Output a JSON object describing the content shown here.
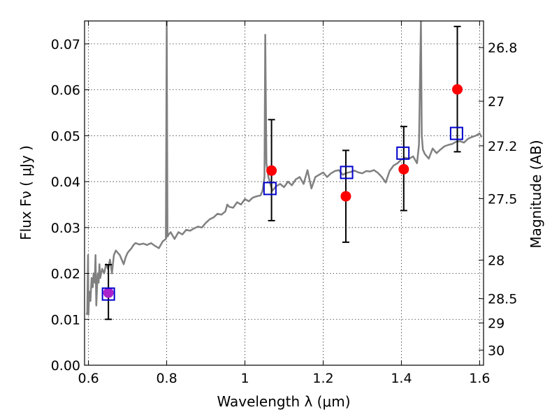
{
  "chart_data": {
    "type": "scatter",
    "xlabel": "Wavelength  λ (μm)",
    "ylabel": "Flux  Fν  ( μJy )",
    "ylabel_right": "Magnitude (AB)",
    "xlim": [
      0.59,
      1.61
    ],
    "ylim": [
      0.0,
      0.075
    ],
    "grid": true,
    "x_ticks": [
      {
        "value": 0.6,
        "label": "0.6"
      },
      {
        "value": 0.8,
        "label": "0.8"
      },
      {
        "value": 1.0,
        "label": "1"
      },
      {
        "value": 1.2,
        "label": "1.2"
      },
      {
        "value": 1.4,
        "label": "1.4"
      },
      {
        "value": 1.6,
        "label": "1.6"
      }
    ],
    "y_ticks": [
      {
        "value": 0.0,
        "label": "0.00"
      },
      {
        "value": 0.01,
        "label": "0.01"
      },
      {
        "value": 0.02,
        "label": "0.02"
      },
      {
        "value": 0.03,
        "label": "0.03"
      },
      {
        "value": 0.04,
        "label": "0.04"
      },
      {
        "value": 0.05,
        "label": "0.05"
      },
      {
        "value": 0.06,
        "label": "0.06"
      },
      {
        "value": 0.07,
        "label": "0.07"
      }
    ],
    "y2_ticks": [
      {
        "flux": 0.0692,
        "label": "26.8"
      },
      {
        "flux": 0.0575,
        "label": "27"
      },
      {
        "flux": 0.0478,
        "label": "27.2"
      },
      {
        "flux": 0.0363,
        "label": "27.5"
      },
      {
        "flux": 0.0229,
        "label": "28"
      },
      {
        "flux": 0.0145,
        "label": "28.5"
      },
      {
        "flux": 0.0092,
        "label": "29"
      },
      {
        "flux": 0.0033,
        "label": "30"
      }
    ],
    "series": [
      {
        "kind": "model-spectrum",
        "color": "#808080",
        "x": [
          0.595,
          0.597,
          0.599,
          0.6,
          0.601,
          0.603,
          0.605,
          0.608,
          0.611,
          0.613,
          0.616,
          0.618,
          0.62,
          0.622,
          0.624,
          0.626,
          0.628,
          0.63,
          0.635,
          0.64,
          0.645,
          0.65,
          0.655,
          0.66,
          0.665,
          0.67,
          0.675,
          0.68,
          0.685,
          0.69,
          0.695,
          0.7,
          0.705,
          0.71,
          0.715,
          0.72,
          0.73,
          0.74,
          0.75,
          0.76,
          0.77,
          0.78,
          0.79,
          0.798,
          0.8,
          0.802,
          0.805,
          0.81,
          0.82,
          0.83,
          0.84,
          0.85,
          0.86,
          0.87,
          0.88,
          0.89,
          0.9,
          0.91,
          0.92,
          0.93,
          0.94,
          0.95,
          0.955,
          0.96,
          0.97,
          0.98,
          0.99,
          1.0,
          1.01,
          1.02,
          1.03,
          1.04,
          1.045,
          1.05,
          1.052,
          1.055,
          1.06,
          1.07,
          1.08,
          1.09,
          1.1,
          1.11,
          1.12,
          1.13,
          1.14,
          1.15,
          1.16,
          1.17,
          1.18,
          1.19,
          1.2,
          1.21,
          1.22,
          1.23,
          1.24,
          1.25,
          1.26,
          1.27,
          1.28,
          1.29,
          1.3,
          1.31,
          1.32,
          1.33,
          1.34,
          1.35,
          1.36,
          1.37,
          1.38,
          1.39,
          1.4,
          1.41,
          1.42,
          1.43,
          1.44,
          1.445,
          1.45,
          1.452,
          1.455,
          1.46,
          1.47,
          1.48,
          1.49,
          1.5,
          1.51,
          1.52,
          1.53,
          1.54,
          1.55,
          1.56,
          1.57,
          1.58,
          1.59,
          1.6,
          1.605
        ],
        "y": [
          0.011,
          0.0115,
          0.024,
          0.011,
          0.014,
          0.016,
          0.014,
          0.019,
          0.017,
          0.02,
          0.018,
          0.024,
          0.013,
          0.017,
          0.02,
          0.018,
          0.022,
          0.019,
          0.021,
          0.02,
          0.022,
          0.021,
          0.023,
          0.02,
          0.024,
          0.025,
          0.0245,
          0.024,
          0.023,
          0.022,
          0.0235,
          0.0245,
          0.025,
          0.0255,
          0.0262,
          0.0266,
          0.0263,
          0.0265,
          0.0262,
          0.0266,
          0.026,
          0.0255,
          0.027,
          0.0275,
          0.075,
          0.028,
          0.0285,
          0.029,
          0.0275,
          0.029,
          0.0285,
          0.0295,
          0.0293,
          0.0298,
          0.0302,
          0.03,
          0.031,
          0.0318,
          0.0322,
          0.033,
          0.0328,
          0.0335,
          0.035,
          0.0345,
          0.0343,
          0.0355,
          0.035,
          0.0362,
          0.0357,
          0.0365,
          0.0368,
          0.037,
          0.038,
          0.041,
          0.072,
          0.044,
          0.041,
          0.038,
          0.039,
          0.0395,
          0.0388,
          0.04,
          0.0392,
          0.0405,
          0.041,
          0.0395,
          0.0425,
          0.0385,
          0.041,
          0.0415,
          0.042,
          0.041,
          0.0418,
          0.0423,
          0.0425,
          0.0415,
          0.0419,
          0.0421,
          0.0424,
          0.042,
          0.0418,
          0.0423,
          0.0422,
          0.0425,
          0.0419,
          0.041,
          0.0398,
          0.0423,
          0.0435,
          0.044,
          0.0448,
          0.0452,
          0.045,
          0.0455,
          0.044,
          0.048,
          0.075,
          0.05,
          0.047,
          0.046,
          0.045,
          0.0472,
          0.0462,
          0.047,
          0.0477,
          0.048,
          0.0482,
          0.0487,
          0.0488,
          0.0485,
          0.0493,
          0.0497,
          0.05,
          0.0505,
          0.0497
        ]
      },
      {
        "kind": "observed",
        "marker": "circle",
        "color": "#ff0000",
        "x": [
          0.651,
          1.068,
          1.258,
          1.406,
          1.543
        ],
        "y": [
          0.0158,
          0.0424,
          0.0368,
          0.0427,
          0.0601
        ],
        "yerr_low": [
          0.01,
          0.0315,
          0.0268,
          0.0337,
          0.0465
        ],
        "yerr_high": [
          0.0219,
          0.0535,
          0.0468,
          0.052,
          0.0738
        ],
        "first_point_color": "#aa22cc"
      },
      {
        "kind": "model-photometry",
        "marker": "square",
        "color": "#0000cc",
        "x": [
          0.651,
          1.064,
          1.26,
          1.404,
          1.541
        ],
        "y": [
          0.0155,
          0.0385,
          0.042,
          0.0462,
          0.0505
        ]
      }
    ]
  }
}
